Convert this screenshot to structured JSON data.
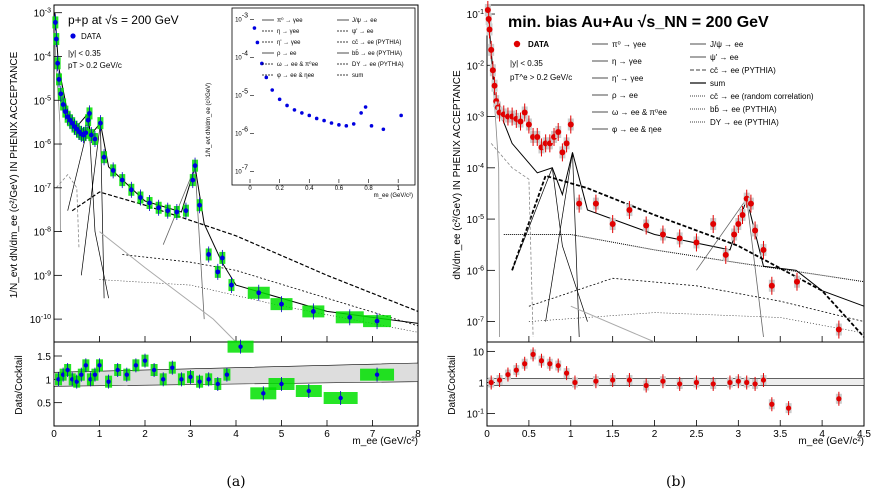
{
  "captions": [
    "(a)",
    "(b)"
  ],
  "chart_data": [
    {
      "type": "scatter",
      "panel": "a",
      "title": "p+p at √s = 200 GeV",
      "notes": [
        "|y| < 0.35",
        "pT > 0.2 GeV/c"
      ],
      "data_label": "DATA",
      "xlabel": "m_ee (GeV/c²)",
      "ylabel": "1/N_evt dN/dm_ee (c²/GeV) IN PHENIX ACCEPTANCE",
      "xlim": [
        0,
        8
      ],
      "ylim": [
        3e-11,
        0.0015
      ],
      "log_y": true,
      "x_ticks": [
        0,
        1,
        2,
        3,
        4,
        5,
        6,
        7,
        8
      ],
      "y_ticks": [
        {
          "v": 1e-10,
          "m": "10",
          "e": "-10"
        },
        {
          "v": 1e-09,
          "m": "10",
          "e": "-9"
        },
        {
          "v": 1e-08,
          "m": "10",
          "e": "-8"
        },
        {
          "v": 1e-07,
          "m": "10",
          "e": "-7"
        },
        {
          "v": 1e-06,
          "m": "10",
          "e": "-6"
        },
        {
          "v": 1e-05,
          "m": "10",
          "e": "-5"
        },
        {
          "v": 0.0001,
          "m": "10",
          "e": "-4"
        },
        {
          "v": 0.001,
          "m": "10",
          "e": "-3"
        }
      ],
      "data": {
        "x": [
          0.03,
          0.05,
          0.08,
          0.11,
          0.15,
          0.2,
          0.25,
          0.3,
          0.35,
          0.4,
          0.45,
          0.5,
          0.55,
          0.6,
          0.65,
          0.7,
          0.75,
          0.78,
          0.82,
          0.9,
          1.02,
          1.1,
          1.3,
          1.5,
          1.7,
          1.9,
          2.1,
          2.3,
          2.5,
          2.7,
          2.9,
          3.05,
          3.1,
          3.2,
          3.4,
          3.6,
          3.7,
          3.9,
          4.5,
          5.0,
          5.7,
          6.5,
          7.1
        ],
        "y": [
          0.0006,
          0.00025,
          7e-05,
          3e-05,
          1.4e-05,
          8e-06,
          5.5e-06,
          4.2e-06,
          3.5e-06,
          3e-06,
          2.5e-06,
          2.2e-06,
          1.9e-06,
          1.7e-06,
          1.6e-06,
          1.8e-06,
          3.5e-06,
          5e-06,
          1.6e-06,
          1.3e-06,
          3e-06,
          5e-07,
          2.5e-07,
          1.5e-07,
          9e-08,
          6e-08,
          4.5e-08,
          3.5e-08,
          3e-08,
          2.8e-08,
          3e-08,
          1.5e-07,
          3.2e-07,
          4e-08,
          3e-09,
          1.2e-09,
          2.5e-09,
          6e-10,
          4e-10,
          2.2e-10,
          1.5e-10,
          1.1e-10,
          9e-11
        ]
      },
      "insets": [
        {
          "xlabel": "m_ee (GeV/c²)",
          "ylabel": "1/N_evt dN/dm_ee (c²/GeV)",
          "xlim": [
            0,
            1.1
          ],
          "x_ticks": [
            0,
            0.2,
            0.4,
            0.6,
            0.8,
            1
          ],
          "y_ticks": [
            {
              "v": 1e-07,
              "m": "10",
              "e": "-7"
            },
            {
              "v": 1e-06,
              "m": "10",
              "e": "-6"
            },
            {
              "v": 1e-05,
              "m": "10",
              "e": "-5"
            },
            {
              "v": 0.0001,
              "m": "10",
              "e": "-4"
            },
            {
              "v": 0.001,
              "m": "10",
              "e": "-3"
            }
          ],
          "legend": [
            "π⁰ → γee",
            "η → γee",
            "η' → γee",
            "ρ → ee",
            "ω → ee & π⁰ee",
            "φ → ee & ηee",
            "J/ψ → ee",
            "ψ' → ee",
            "cc̄ → ee (PYTHIA)",
            "bb̄ → ee (PYTHIA)",
            "DY → ee (PYTHIA)",
            "sum"
          ]
        }
      ],
      "ratio": {
        "ylabel": "Data/Cocktail",
        "ylim": [
          0,
          1.8
        ],
        "y_ticks": [
          0.5,
          1,
          1.5
        ],
        "x": [
          0.1,
          0.2,
          0.3,
          0.4,
          0.5,
          0.6,
          0.7,
          0.8,
          0.9,
          1.0,
          1.2,
          1.4,
          1.6,
          1.8,
          2.0,
          2.2,
          2.4,
          2.6,
          2.8,
          3.0,
          3.2,
          3.4,
          3.6,
          3.8,
          4.1,
          4.6,
          5.0,
          5.6,
          6.3,
          7.1
        ],
        "y": [
          1.0,
          1.1,
          1.2,
          1.0,
          0.95,
          1.1,
          1.3,
          1.0,
          1.1,
          1.3,
          0.95,
          1.2,
          1.1,
          1.3,
          1.4,
          1.2,
          1.0,
          1.25,
          1.0,
          1.05,
          0.95,
          1.0,
          0.9,
          1.1,
          1.7,
          0.7,
          0.9,
          0.75,
          0.6,
          1.1
        ]
      }
    },
    {
      "type": "scatter",
      "panel": "b",
      "title": "min. bias Au+Au √s_NN = 200 GeV",
      "notes": [
        "|y| < 0.35",
        "pT^e > 0.2 GeV/c"
      ],
      "data_label": "DATA",
      "xlabel": "m_ee (GeV/c²)",
      "ylabel": "dN/dm_ee (c²/GeV) IN PHENIX ACCEPTANCE",
      "xlim": [
        0,
        4.5
      ],
      "ylim": [
        4e-08,
        0.15
      ],
      "log_y": true,
      "x_ticks": [
        0,
        0.5,
        1,
        1.5,
        2,
        2.5,
        3,
        3.5,
        4,
        4.5
      ],
      "y_ticks": [
        {
          "v": 1e-07,
          "m": "10",
          "e": "-7"
        },
        {
          "v": 1e-06,
          "m": "10",
          "e": "-6"
        },
        {
          "v": 1e-05,
          "m": "10",
          "e": "-5"
        },
        {
          "v": 0.0001,
          "m": "10",
          "e": "-4"
        },
        {
          "v": 0.001,
          "m": "10",
          "e": "-3"
        },
        {
          "v": 0.01,
          "m": "10",
          "e": "-2"
        },
        {
          "v": 0.1,
          "m": "10",
          "e": "-1"
        }
      ],
      "legend": [
        "π⁰ → γee",
        "η → γee",
        "η' → γee",
        "ρ → ee",
        "ω → ee & π⁰ee",
        "φ → ee & ηee",
        "J/ψ → ee",
        "ψ' → ee",
        "cc̄ → ee (PYTHIA)",
        "sum",
        "cc̄ → ee (random correlation)",
        "bb̄ → ee (PYTHIA)",
        "DY → ee (PYTHIA)"
      ],
      "data": {
        "x": [
          0.01,
          0.02,
          0.03,
          0.05,
          0.07,
          0.09,
          0.11,
          0.13,
          0.15,
          0.2,
          0.25,
          0.3,
          0.35,
          0.4,
          0.45,
          0.5,
          0.55,
          0.6,
          0.65,
          0.7,
          0.75,
          0.8,
          0.85,
          0.9,
          0.95,
          1.0,
          1.1,
          1.3,
          1.5,
          1.7,
          1.9,
          2.1,
          2.3,
          2.5,
          2.7,
          2.85,
          2.95,
          3.0,
          3.05,
          3.1,
          3.15,
          3.2,
          3.3,
          3.4,
          3.7,
          4.2
        ],
        "y": [
          0.12,
          0.08,
          0.05,
          0.02,
          0.008,
          0.004,
          0.002,
          0.0015,
          0.0012,
          0.0011,
          0.001,
          0.001,
          0.0009,
          0.0008,
          0.0012,
          0.0007,
          0.0004,
          0.0004,
          0.00025,
          0.0003,
          0.0003,
          0.0004,
          0.0005,
          0.0002,
          0.0003,
          0.0007,
          2e-05,
          2e-05,
          8e-06,
          1.5e-05,
          7.5e-06,
          5e-06,
          4.2e-06,
          3.5e-06,
          8e-06,
          2e-06,
          5e-06,
          8e-06,
          1.2e-05,
          2.5e-05,
          2e-05,
          6e-06,
          2.5e-06,
          5e-07,
          6e-07,
          7e-08
        ]
      },
      "ratio": {
        "ylabel": "Data/Cocktail",
        "log_y": true,
        "ylim": [
          0.04,
          20
        ],
        "y_ticks": [
          {
            "v": 0.1,
            "m": "10",
            "e": "-1"
          },
          {
            "v": 1,
            "m": "1",
            "e": ""
          },
          {
            "v": 10,
            "m": "10",
            "e": ""
          }
        ],
        "x": [
          0.05,
          0.15,
          0.25,
          0.35,
          0.45,
          0.55,
          0.65,
          0.75,
          0.85,
          0.95,
          1.05,
          1.3,
          1.5,
          1.7,
          1.9,
          2.1,
          2.3,
          2.5,
          2.7,
          2.9,
          3.0,
          3.1,
          3.2,
          3.3,
          3.4,
          3.6,
          4.2
        ],
        "y": [
          1.0,
          1.2,
          1.8,
          2.5,
          4.0,
          8.0,
          5.0,
          4.0,
          3.5,
          2.0,
          1.0,
          1.1,
          1.2,
          1.2,
          0.8,
          1.1,
          0.9,
          1.0,
          0.9,
          1.0,
          1.1,
          1.0,
          0.9,
          1.2,
          0.2,
          0.15,
          0.3
        ]
      }
    }
  ]
}
